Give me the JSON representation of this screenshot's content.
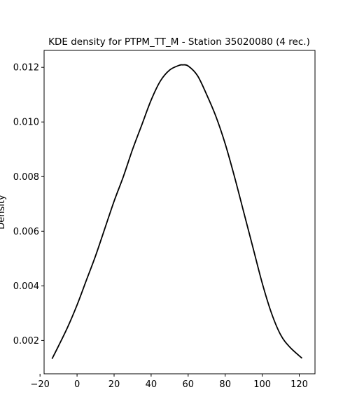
{
  "chart_data": {
    "type": "line",
    "title": "KDE density for PTPM_TT_M - Station 35020080 (4 rec.)",
    "xlabel": "",
    "ylabel": "Density",
    "xlim": [
      -17.8,
      128.5
    ],
    "ylim": [
      0.00078,
      0.01262
    ],
    "xticks": [
      -20,
      0,
      20,
      40,
      60,
      80,
      100,
      120
    ],
    "yticks": [
      0.002,
      0.004,
      0.006,
      0.008,
      0.01,
      0.012
    ],
    "ytick_labels": [
      "0.002",
      "0.004",
      "0.006",
      "0.008",
      "0.010",
      "0.012"
    ],
    "grid": false,
    "line_color": "#000000",
    "series": [
      {
        "x": [
          -13.5,
          -10,
          -5,
          0,
          5,
          10,
          15,
          20,
          25,
          30,
          35,
          40,
          45,
          50,
          55,
          57,
          60,
          65,
          70,
          75,
          80,
          85,
          90,
          95,
          100,
          105,
          110,
          115,
          121.5
        ],
        "y": [
          0.00133,
          0.0018,
          0.0025,
          0.0033,
          0.0042,
          0.0051,
          0.0061,
          0.0071,
          0.008,
          0.009,
          0.0099,
          0.0108,
          0.0115,
          0.0119,
          0.01207,
          0.01209,
          0.01205,
          0.0117,
          0.011,
          0.0102,
          0.0092,
          0.008,
          0.0067,
          0.0054,
          0.0041,
          0.003,
          0.0022,
          0.00175,
          0.00135
        ]
      }
    ]
  }
}
